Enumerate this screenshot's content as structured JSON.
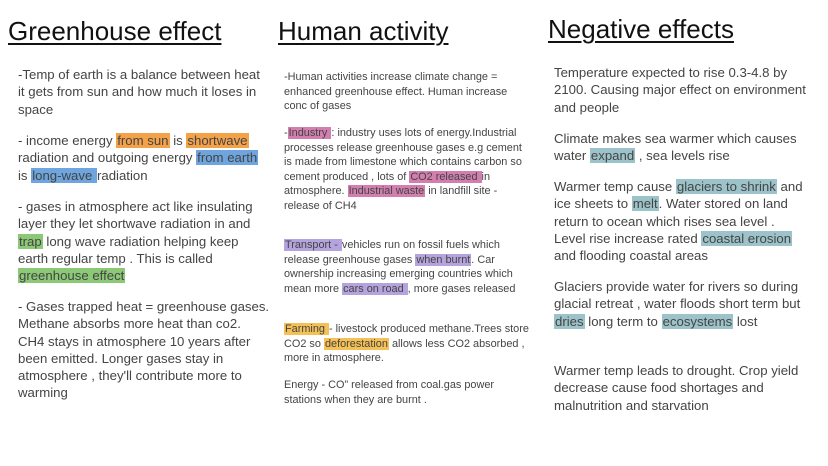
{
  "colors": {
    "orange": "#f3a24a",
    "blue": "#6fa5de",
    "green": "#8cc976",
    "pink": "#d27fb0",
    "purple": "#b4a3dc",
    "yellow": "#f5c156",
    "teal": "#9cc3c9"
  },
  "columns": [
    {
      "title": "Greenhouse effect",
      "paragraphs": [
        [
          {
            "t": "-Temp of earth is a balance between heat it gets from sun and how much it loses in space"
          }
        ],
        [
          {
            "t": "- income energy "
          },
          {
            "t": "from sun",
            "hl": "orange"
          },
          {
            "t": " is "
          },
          {
            "t": "shortwave",
            "hl": "orange"
          },
          {
            "t": " radiation and outgoing energy "
          },
          {
            "t": "from earth",
            "hl": "blue"
          },
          {
            "t": " is "
          },
          {
            "t": "long-wave ",
            "hl": "blue"
          },
          {
            "t": "radiation"
          }
        ],
        [
          {
            "t": "- gases in atmosphere act like insulating layer they let shortwave radiation in and "
          },
          {
            "t": "trap",
            "hl": "green"
          },
          {
            "t": " long wave radiation helping keep earth regular temp . This is called "
          },
          {
            "t": "greenhouse effect",
            "hl": "green"
          }
        ],
        [
          {
            "t": "- Gases trapped heat = greenhouse gases. Methane absorbs more heat than co2. CH4 stays in atmosphere 10 years after been emitted. Longer gases stay in atmosphere , they'll contribute more to warming"
          }
        ]
      ]
    },
    {
      "title": "Human activity",
      "paragraphs": [
        [
          {
            "t": "-Human activities increase climate change = enhanced greenhouse effect. Human increase conc of gases"
          }
        ],
        [
          {
            "t": "-"
          },
          {
            "t": "Industry ",
            "hl": "pink"
          },
          {
            "t": ": industry uses lots of energy.Industrial processes release greenhouse gases e.g cement is made from limestone which contains carbon so cement produced , lots of "
          },
          {
            "t": "CO2 released ",
            "hl": "pink"
          },
          {
            "t": "in atmosphere. "
          },
          {
            "t": "Industrial waste",
            "hl": "pink"
          },
          {
            "t": " in landfill site - release of CH4"
          }
        ],
        [
          {
            "t": "Transport - ",
            "hl": "purple"
          },
          {
            "t": "vehicles run on fossil fuels which release greenhouse gases "
          },
          {
            "t": "when burnt",
            "hl": "purple"
          },
          {
            "t": ". Car ownership increasing emerging countries which mean more "
          },
          {
            "t": "cars on road ",
            "hl": "purple"
          },
          {
            "t": ", more gases released"
          }
        ],
        [
          {
            "t": "Farming ",
            "hl": "yellow"
          },
          {
            "t": "- livestock produced methane.Trees store CO2 so "
          },
          {
            "t": "deforestation",
            "hl": "yellow"
          },
          {
            "t": " allows less CO2 absorbed , more in atmosphere."
          }
        ],
        [
          {
            "t": "Energy - CO” released from coal.gas power stations when they are burnt ."
          }
        ]
      ]
    },
    {
      "title": "Negative effects",
      "paragraphs": [
        [
          {
            "t": "Temperature expected to rise 0.3-4.8 by 2100. Causing major effect on environment and people"
          }
        ],
        [
          {
            "t": "Climate makes sea warmer which causes water "
          },
          {
            "t": "expand",
            "hl": "teal"
          },
          {
            "t": " , sea levels rise"
          }
        ],
        [
          {
            "t": "Warmer temp cause "
          },
          {
            "t": "glaciers to shrink",
            "hl": "teal"
          },
          {
            "t": " and ice sheets to "
          },
          {
            "t": "melt",
            "hl": "teal"
          },
          {
            "t": ". Water stored on land return to ocean which rises sea level . Level rise increase rated "
          },
          {
            "t": "coastal erosion ",
            "hl": "teal"
          },
          {
            "t": "and flooding coastal areas"
          }
        ],
        [
          {
            "t": "Glaciers provide water for rivers so during glacial retreat , water floods short term but "
          },
          {
            "t": "dries",
            "hl": "teal"
          },
          {
            "t": " long term to "
          },
          {
            "t": "ecosystems",
            "hl": "teal"
          },
          {
            "t": " lost"
          }
        ],
        [
          {
            "t": "Warmer temp leads to drought. Crop yield decrease cause food shortages and malnutrition and starvation"
          }
        ]
      ]
    }
  ]
}
